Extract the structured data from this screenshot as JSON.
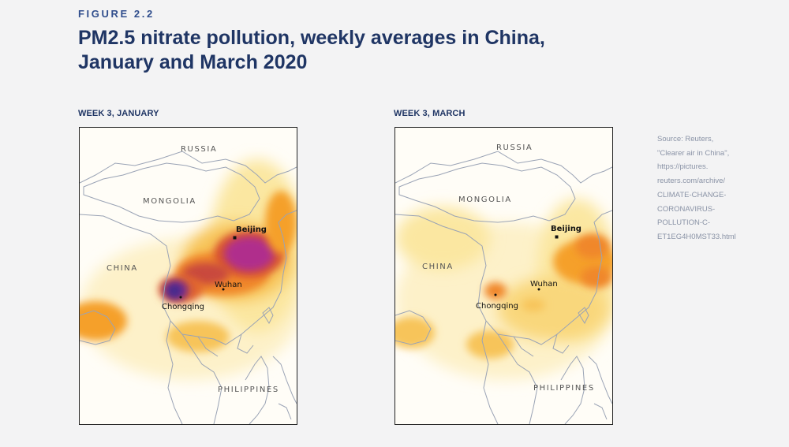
{
  "figure_label": "FIGURE 2.2",
  "title_line1": "PM2.5 nitrate pollution, weekly averages in China,",
  "title_line2": "January and March 2020",
  "panels": [
    {
      "label": "WEEK 3, JANUARY",
      "countries": {
        "russia": "RUSSIA",
        "mongolia": "MONGOLIA",
        "china": "CHINA",
        "philippines": "PHILIPPINES"
      },
      "cities": {
        "beijing": "Beijing",
        "wuhan": "Wuhan",
        "chongqing": "Chongqing"
      }
    },
    {
      "label": "WEEK 3, MARCH",
      "countries": {
        "russia": "RUSSIA",
        "mongolia": "MONGOLIA",
        "china": "CHINA",
        "philippines": "PHILIPPINES"
      },
      "cities": {
        "beijing": "Beijing",
        "wuhan": "Wuhan",
        "chongqing": "Chongqing"
      }
    }
  ],
  "source_lines": [
    "Source: Reuters,",
    "\"Clearer air in China\",",
    "https://pictures.",
    "reuters.com/archive/",
    "CLIMATE-CHANGE-",
    "CORONAVIRUS-",
    "POLLUTION-C-",
    "ET1EG4H0MST33.html"
  ],
  "colors": {
    "title": "#1f3564",
    "figure_label": "#2f4d8c",
    "pollution_low": "#fbe7a1",
    "pollution_mid": "#f5a02c",
    "pollution_high": "#b02e8c",
    "pollution_peak": "#3c2a8c",
    "border": "#9aa3b5"
  }
}
